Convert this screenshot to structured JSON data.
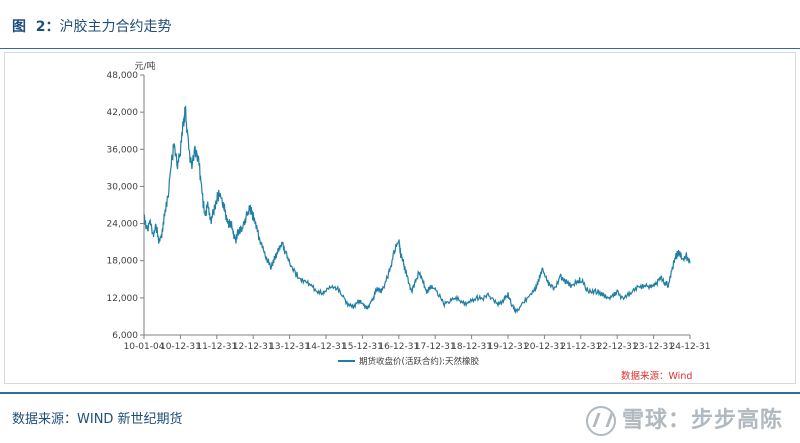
{
  "figure": {
    "label": "图  2：",
    "title": "沪胶主力合约走势"
  },
  "source_text": "数据来源：WIND  新世纪期货",
  "watermark_text": "雪球：步步高陈",
  "chart_data": {
    "type": "line",
    "unit_label": "元/吨",
    "annotation": "数据来源：Wind",
    "ylim": [
      6000,
      48000
    ],
    "y_ticks": [
      "6,000",
      "12,000",
      "18,000",
      "24,000",
      "30,000",
      "36,000",
      "42,000",
      "48,000"
    ],
    "y_tick_values": [
      6000,
      12000,
      18000,
      24000,
      30000,
      36000,
      42000,
      48000
    ],
    "x_ticks": [
      "10-01-04",
      "10-12-31",
      "11-12-31",
      "12-12-31",
      "13-12-31",
      "14-12-31",
      "15-12-31",
      "16-12-31",
      "17-12-31",
      "18-12-31",
      "19-12-31",
      "20-12-31",
      "21-12-31",
      "22-12-31",
      "23-12-31",
      "24-12-31"
    ],
    "x_tick_values": [
      2010.0,
      2011.0,
      2012.0,
      2013.0,
      2014.0,
      2015.0,
      2016.0,
      2017.0,
      2018.0,
      2019.0,
      2020.0,
      2021.0,
      2022.0,
      2023.0,
      2024.0,
      2025.0
    ],
    "series": [
      {
        "name": "期货收盘价(活跃合约):天然橡胶",
        "color": "#1f7ea1",
        "x": [
          2010.0,
          2010.08,
          2010.17,
          2010.25,
          2010.33,
          2010.42,
          2010.5,
          2010.58,
          2010.67,
          2010.75,
          2010.83,
          2010.92,
          2011.0,
          2011.08,
          2011.13,
          2011.2,
          2011.3,
          2011.4,
          2011.5,
          2011.58,
          2011.67,
          2011.75,
          2011.83,
          2011.92,
          2012.0,
          2012.08,
          2012.17,
          2012.25,
          2012.33,
          2012.42,
          2012.5,
          2012.58,
          2012.67,
          2012.75,
          2012.83,
          2012.92,
          2013.0,
          2013.1,
          2013.2,
          2013.3,
          2013.4,
          2013.5,
          2013.6,
          2013.7,
          2013.8,
          2013.9,
          2014.0,
          2014.15,
          2014.3,
          2014.45,
          2014.6,
          2014.75,
          2014.9,
          2015.0,
          2015.15,
          2015.3,
          2015.45,
          2015.6,
          2015.75,
          2015.9,
          2016.0,
          2016.1,
          2016.15,
          2016.2,
          2016.3,
          2016.4,
          2016.5,
          2016.6,
          2016.7,
          2016.8,
          2016.9,
          2017.0,
          2017.05,
          2017.1,
          2017.15,
          2017.25,
          2017.35,
          2017.45,
          2017.55,
          2017.65,
          2017.75,
          2017.85,
          2017.95,
          2018.1,
          2018.25,
          2018.4,
          2018.55,
          2018.7,
          2018.85,
          2019.0,
          2019.15,
          2019.3,
          2019.45,
          2019.6,
          2019.75,
          2019.9,
          2020.0,
          2020.1,
          2020.2,
          2020.3,
          2020.45,
          2020.6,
          2020.75,
          2020.85,
          2020.95,
          2021.05,
          2021.15,
          2021.3,
          2021.45,
          2021.6,
          2021.75,
          2021.9,
          2022.0,
          2022.15,
          2022.3,
          2022.45,
          2022.6,
          2022.75,
          2022.9,
          2023.0,
          2023.15,
          2023.3,
          2023.45,
          2023.6,
          2023.75,
          2023.9,
          2024.0,
          2024.1,
          2024.2,
          2024.3,
          2024.4,
          2024.5,
          2024.6,
          2024.7,
          2024.8,
          2024.9,
          2025.0
        ],
        "y": [
          25500,
          23000,
          24500,
          22000,
          23500,
          21000,
          22500,
          26000,
          29000,
          34000,
          37000,
          33000,
          36000,
          40000,
          42500,
          38000,
          33000,
          36000,
          34000,
          30000,
          25000,
          27000,
          24500,
          26000,
          28000,
          29000,
          27000,
          25500,
          24000,
          23500,
          21000,
          22500,
          23000,
          24000,
          25500,
          26500,
          25000,
          23000,
          21000,
          19500,
          18000,
          17000,
          18500,
          20000,
          21000,
          19000,
          17500,
          16000,
          15000,
          14500,
          14000,
          13000,
          12800,
          13200,
          14000,
          13500,
          12500,
          11000,
          10500,
          11500,
          11000,
          10500,
          10200,
          11000,
          12000,
          13500,
          13000,
          14000,
          15500,
          17500,
          20000,
          21500,
          19000,
          18500,
          17000,
          15000,
          13000,
          14500,
          16000,
          15000,
          13000,
          13500,
          14000,
          12500,
          11000,
          11500,
          12000,
          11500,
          11000,
          11500,
          12000,
          11800,
          12500,
          11500,
          11000,
          11800,
          12500,
          11000,
          10000,
          10200,
          11500,
          12500,
          13500,
          15000,
          16500,
          15000,
          14000,
          13500,
          15500,
          14500,
          14000,
          14500,
          15000,
          13500,
          13000,
          13000,
          12500,
          12000,
          12500,
          12800,
          12000,
          12500,
          13000,
          13800,
          14000,
          13800,
          14000,
          14500,
          15500,
          14500,
          14000,
          16500,
          18500,
          19500,
          18000,
          18800,
          17500
        ]
      }
    ]
  }
}
